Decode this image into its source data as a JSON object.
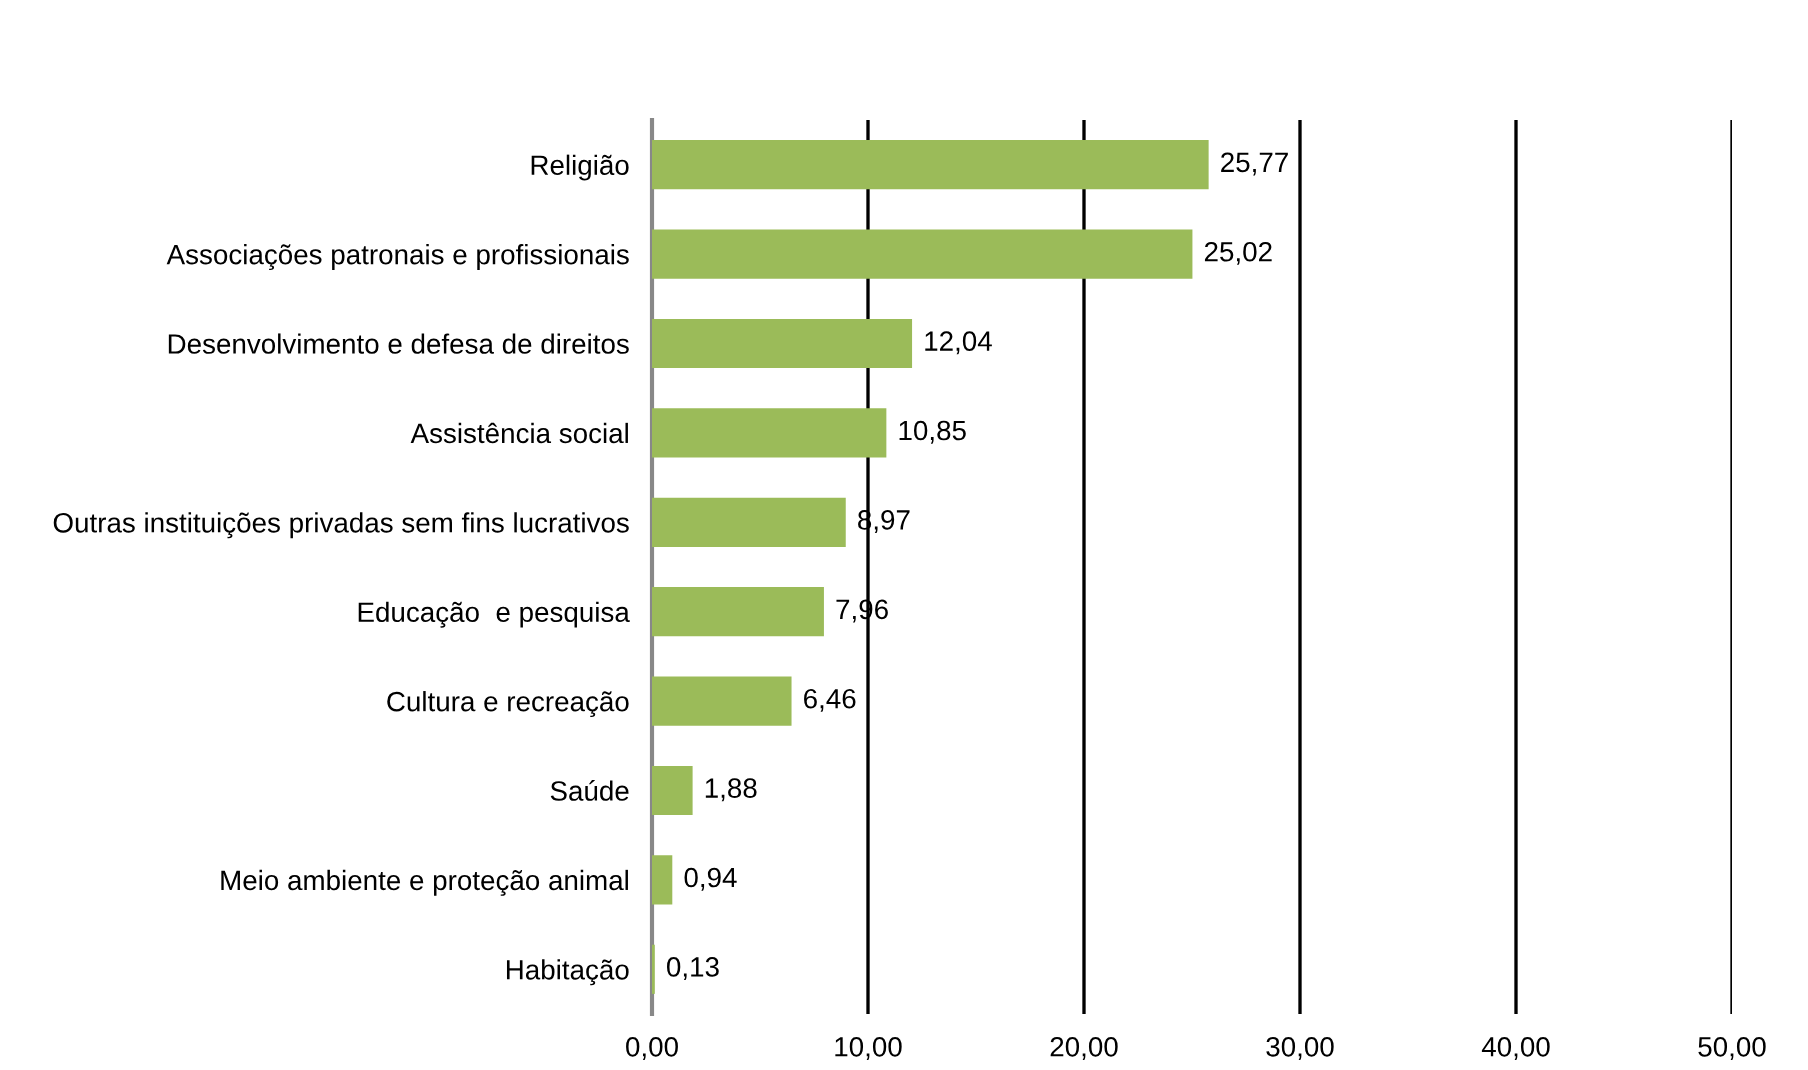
{
  "chart_data": {
    "type": "bar",
    "orientation": "horizontal",
    "categories": [
      "Religião",
      "Associações patronais e profissionais",
      "Desenvolvimento e defesa de direitos",
      "Assistência social",
      "Outras instituições privadas sem fins lucrativos",
      "Educação  e pesquisa",
      "Cultura e recreação",
      "Saúde",
      "Meio ambiente e proteção animal",
      "Habitação"
    ],
    "values": [
      25.77,
      25.02,
      12.04,
      10.85,
      8.97,
      7.96,
      6.46,
      1.88,
      0.94,
      0.13
    ],
    "value_labels": [
      "25,77",
      "25,02",
      "12,04",
      "10,85",
      "8,97",
      "7,96",
      "6,46",
      "1,88",
      "0,94",
      "0,13"
    ],
    "color": "#9bbb59",
    "xlim": [
      0,
      50
    ],
    "xticks": [
      {
        "value": 0,
        "label": "0,00"
      },
      {
        "value": 10,
        "label": "10,00"
      },
      {
        "value": 20,
        "label": "20,00"
      },
      {
        "value": 30,
        "label": "30,00"
      },
      {
        "value": 40,
        "label": "40,00"
      },
      {
        "value": 50,
        "label": "50,00"
      }
    ],
    "grid": "x",
    "legend": false
  }
}
